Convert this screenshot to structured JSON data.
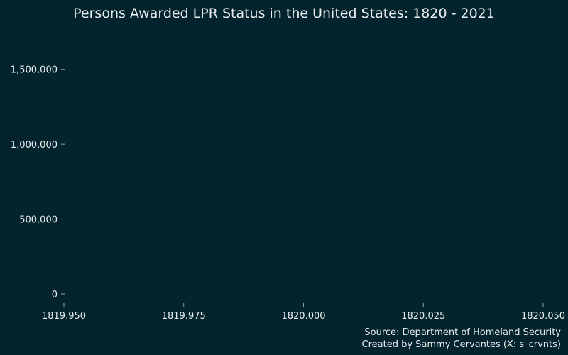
{
  "chart_data": {
    "type": "line",
    "title": "Persons Awarded LPR Status in the United States: 1820 - 2021",
    "xlabel": "",
    "ylabel": "",
    "x": [],
    "series": [],
    "xlim": [
      1819.95,
      1820.05
    ],
    "ylim": [
      0,
      1750000
    ],
    "x_ticks": [
      1819.95,
      1819.975,
      1820.0,
      1820.025,
      1820.05
    ],
    "x_tick_labels": [
      "1819.950",
      "1819.975",
      "1820.000",
      "1820.025",
      "1820.050"
    ],
    "y_ticks": [
      0,
      500000,
      1000000,
      1500000
    ],
    "y_tick_labels": [
      "0",
      "500,000",
      "1,000,000",
      "1,500,000"
    ],
    "grid": false,
    "legend": "none"
  },
  "caption": {
    "source": "Source: Department of Homeland Security",
    "credit": "Created by Sammy Cervantes (X: s_crvnts)"
  },
  "colors": {
    "background": "#03232d",
    "text": "#e9eef0",
    "tick": "#8ea3ab"
  }
}
